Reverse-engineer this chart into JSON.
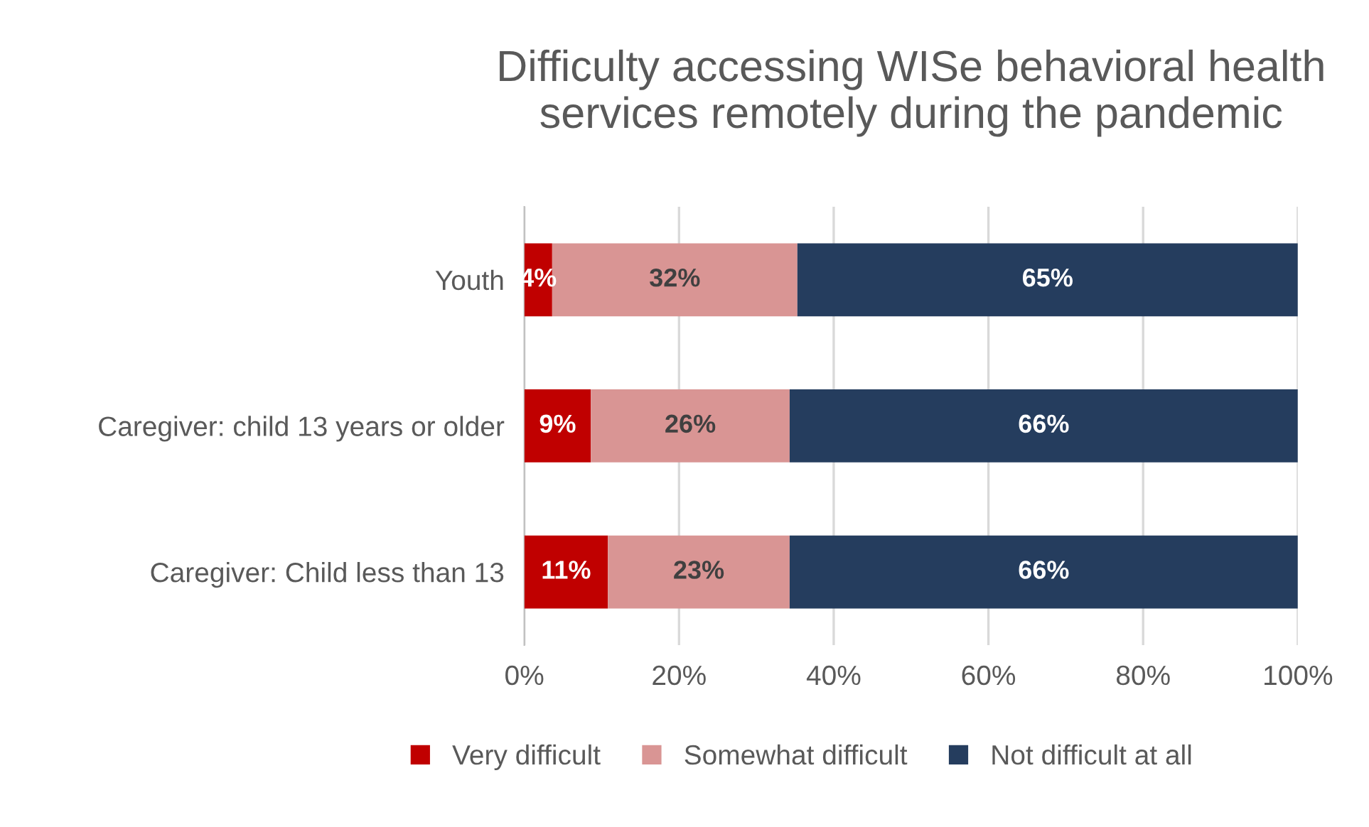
{
  "chart_data": {
    "type": "bar",
    "orientation": "horizontal",
    "stacked": true,
    "title": "Difficulty accessing WISe behavioral health\nservices remotely during the pandemic",
    "categories": [
      "Youth",
      "Caregiver: child 13 years or older",
      "Caregiver: Child less than 13"
    ],
    "series": [
      {
        "name": "Very difficult",
        "color": "#c00000",
        "values": [
          3.6,
          8.6,
          10.8
        ],
        "value_labels": [
          "4%",
          "9%",
          "11%"
        ]
      },
      {
        "name": "Somewhat difficult",
        "color": "#d99594",
        "values": [
          31.7,
          25.7,
          23.5
        ],
        "value_labels": [
          "32%",
          "26%",
          "23%"
        ]
      },
      {
        "name": "Not difficult at all",
        "color": "#253d5e",
        "values": [
          64.7,
          65.7,
          65.7
        ],
        "value_labels": [
          "65%",
          "66%",
          "66%"
        ]
      }
    ],
    "xlim": [
      0,
      100
    ],
    "xticks": [
      {
        "value": 0,
        "label": "0%"
      },
      {
        "value": 20,
        "label": "20%"
      },
      {
        "value": 40,
        "label": "40%"
      },
      {
        "value": 60,
        "label": "60%"
      },
      {
        "value": 80,
        "label": "80%"
      },
      {
        "value": 100,
        "label": "100%"
      }
    ],
    "grid": "x",
    "legend": "bottom"
  }
}
